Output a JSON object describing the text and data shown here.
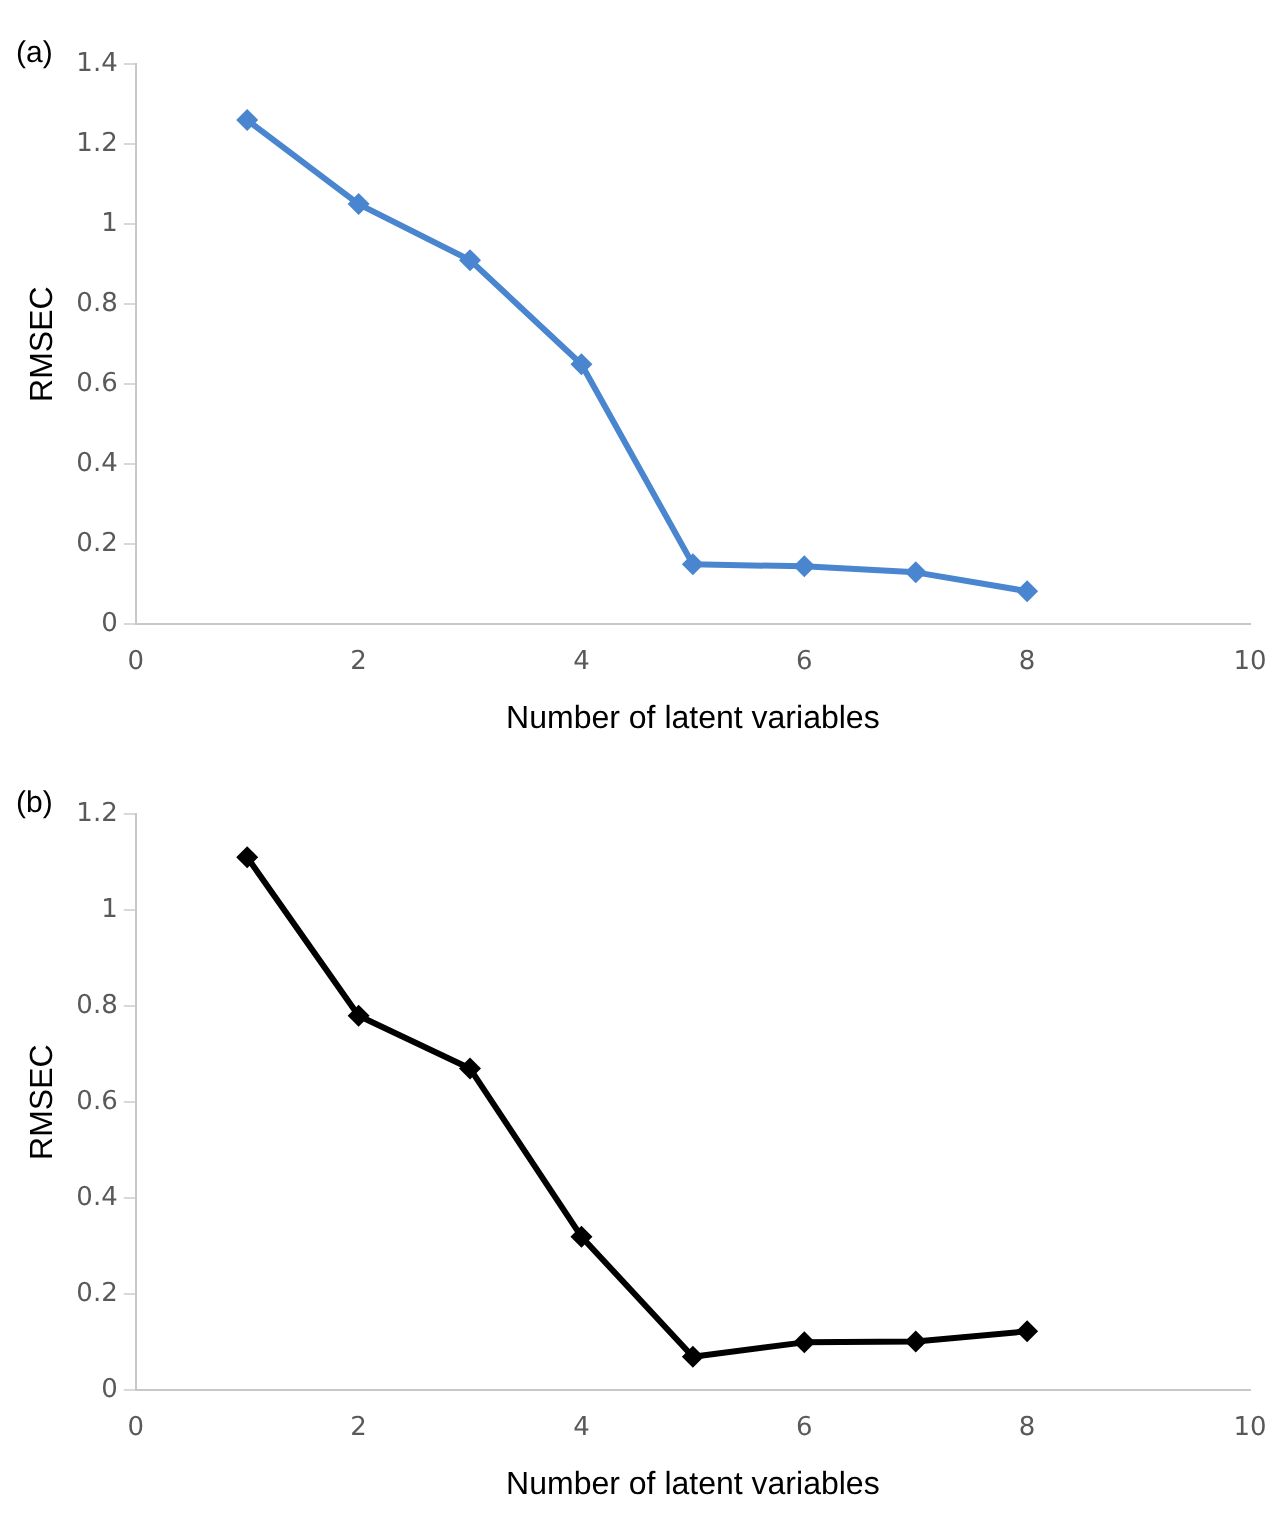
{
  "chart_data": [
    {
      "type": "line",
      "title": "(a)",
      "xlabel": "Number of latent variables",
      "ylabel": "RMSEC",
      "x": [
        1,
        2,
        3,
        4,
        5,
        6,
        7,
        8
      ],
      "series": [
        {
          "color": "#4a86d0",
          "values": [
            1.26,
            1.05,
            0.91,
            0.65,
            0.15,
            0.145,
            0.13,
            0.083
          ]
        }
      ],
      "xlim": [
        0,
        10
      ],
      "xticks": [
        0,
        2,
        4,
        6,
        8,
        10
      ],
      "ylim": [
        0,
        1.4
      ],
      "yticks": [
        0,
        0.2,
        0.4,
        0.6,
        0.8,
        1,
        1.2,
        1.4
      ],
      "grid": false,
      "legend": false,
      "marker": "diamond",
      "line_style": "solid"
    },
    {
      "type": "line",
      "title": "(b)",
      "xlabel": "Number of latent variables",
      "ylabel": "RMSEC",
      "x": [
        1,
        2,
        3,
        4,
        5,
        6,
        7,
        8
      ],
      "series": [
        {
          "color": "#000000",
          "values": [
            1.11,
            0.78,
            0.67,
            0.32,
            0.07,
            0.1,
            0.102,
            0.123
          ]
        }
      ],
      "xlim": [
        0,
        10
      ],
      "xticks": [
        0,
        2,
        4,
        6,
        8,
        10
      ],
      "ylim": [
        0,
        1.2
      ],
      "yticks": [
        0,
        0.2,
        0.4,
        0.6,
        0.8,
        1,
        1.2
      ],
      "grid": false,
      "legend": false,
      "marker": "diamond",
      "line_style": "solid"
    }
  ]
}
